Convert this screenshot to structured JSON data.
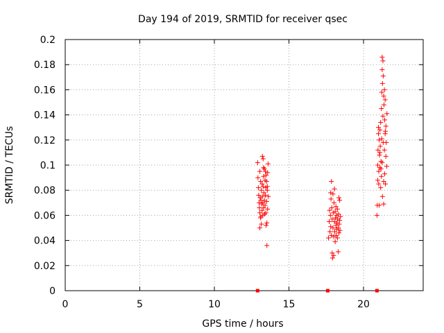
{
  "chart_data": {
    "type": "scatter",
    "title": "Day 194 of 2019, SRMTID for receiver qsec",
    "xlabel": "GPS time / hours",
    "ylabel": "SRMTID / TECUs",
    "xlim": [
      0,
      24
    ],
    "ylim": [
      0,
      0.2
    ],
    "xticks": [
      0,
      5,
      10,
      15,
      20
    ],
    "xtick_labels": [
      "0",
      "5",
      "10",
      "15",
      "20"
    ],
    "yticks": [
      0,
      0.02,
      0.04,
      0.06,
      0.08,
      0.1,
      0.12,
      0.14,
      0.16,
      0.18,
      0.2
    ],
    "ytick_labels": [
      "0",
      "0.02",
      "0.04",
      "0.06",
      "0.08",
      "0.1",
      "0.12",
      "0.14",
      "0.16",
      "0.18",
      "0.2"
    ],
    "grid": true,
    "marker_color": "#ff0000",
    "marker": "plus",
    "series": [
      {
        "name": "SRMTID",
        "points": [
          [
            12.9,
            0.102
          ],
          [
            12.92,
            0.09
          ],
          [
            12.95,
            0.082
          ],
          [
            12.97,
            0.076
          ],
          [
            13.0,
            0.07
          ],
          [
            13.02,
            0.066
          ],
          [
            13.05,
            0.062
          ],
          [
            13.05,
            0.095
          ],
          [
            13.07,
            0.074
          ],
          [
            13.1,
            0.058
          ],
          [
            13.1,
            0.087
          ],
          [
            13.12,
            0.072
          ],
          [
            13.15,
            0.053
          ],
          [
            13.15,
            0.08
          ],
          [
            13.17,
            0.069
          ],
          [
            13.2,
            0.064
          ],
          [
            13.2,
            0.085
          ],
          [
            13.22,
            0.107
          ],
          [
            13.22,
            0.075
          ],
          [
            13.25,
            0.06
          ],
          [
            13.25,
            0.07
          ],
          [
            13.27,
            0.105
          ],
          [
            13.27,
            0.083
          ],
          [
            13.3,
            0.066
          ],
          [
            13.3,
            0.091
          ],
          [
            13.32,
            0.078
          ],
          [
            13.35,
            0.072
          ],
          [
            13.35,
            0.097
          ],
          [
            13.37,
            0.061
          ],
          [
            13.4,
            0.088
          ],
          [
            13.4,
            0.068
          ],
          [
            13.42,
            0.095
          ],
          [
            13.42,
            0.076
          ],
          [
            13.45,
            0.082
          ],
          [
            13.45,
            0.062
          ],
          [
            13.47,
            0.092
          ],
          [
            13.5,
            0.071
          ],
          [
            13.5,
            0.087
          ],
          [
            13.52,
            0.036
          ],
          [
            13.52,
            0.054
          ],
          [
            13.55,
            0.08
          ],
          [
            13.57,
            0.065
          ],
          [
            13.57,
            0.094
          ],
          [
            13.6,
            0.101
          ],
          [
            13.62,
            0.075
          ],
          [
            13.05,
            0.05
          ],
          [
            13.12,
            0.059
          ],
          [
            13.3,
            0.098
          ],
          [
            13.47,
            0.052
          ],
          [
            13.55,
            0.083
          ],
          [
            17.65,
            0.042
          ],
          [
            17.7,
            0.055
          ],
          [
            17.72,
            0.064
          ],
          [
            17.75,
            0.047
          ],
          [
            17.78,
            0.06
          ],
          [
            17.8,
            0.078
          ],
          [
            17.8,
            0.051
          ],
          [
            17.82,
            0.073
          ],
          [
            17.85,
            0.087
          ],
          [
            17.85,
            0.044
          ],
          [
            17.87,
            0.066
          ],
          [
            17.9,
            0.03
          ],
          [
            17.9,
            0.057
          ],
          [
            17.92,
            0.026
          ],
          [
            17.95,
            0.077
          ],
          [
            17.95,
            0.05
          ],
          [
            17.97,
            0.062
          ],
          [
            18.0,
            0.028
          ],
          [
            18.0,
            0.043
          ],
          [
            18.02,
            0.07
          ],
          [
            18.05,
            0.055
          ],
          [
            18.05,
            0.081
          ],
          [
            18.07,
            0.047
          ],
          [
            18.1,
            0.063
          ],
          [
            18.1,
            0.039
          ],
          [
            18.12,
            0.058
          ],
          [
            18.15,
            0.052
          ],
          [
            18.15,
            0.067
          ],
          [
            18.17,
            0.044
          ],
          [
            18.2,
            0.06
          ],
          [
            18.2,
            0.049
          ],
          [
            18.22,
            0.054
          ],
          [
            18.25,
            0.042
          ],
          [
            18.25,
            0.065
          ],
          [
            18.27,
            0.057
          ],
          [
            18.3,
            0.05
          ],
          [
            18.3,
            0.031
          ],
          [
            18.32,
            0.061
          ],
          [
            18.35,
            0.046
          ],
          [
            18.35,
            0.074
          ],
          [
            18.37,
            0.053
          ],
          [
            18.4,
            0.072
          ],
          [
            18.4,
            0.056
          ],
          [
            18.42,
            0.048
          ],
          [
            18.45,
            0.059
          ],
          [
            20.9,
            0.06
          ],
          [
            20.92,
            0.068
          ],
          [
            20.95,
            0.088
          ],
          [
            20.95,
            0.1
          ],
          [
            20.97,
            0.112
          ],
          [
            21.0,
            0.125
          ],
          [
            21.0,
            0.13
          ],
          [
            21.02,
            0.095
          ],
          [
            21.02,
            0.085
          ],
          [
            21.05,
            0.12
          ],
          [
            21.05,
            0.068
          ],
          [
            21.07,
            0.108
          ],
          [
            21.1,
            0.128
          ],
          [
            21.1,
            0.098
          ],
          [
            21.12,
            0.115
          ],
          [
            21.15,
            0.134
          ],
          [
            21.15,
            0.082
          ],
          [
            21.17,
            0.103
          ],
          [
            21.2,
            0.145
          ],
          [
            21.2,
            0.091
          ],
          [
            21.22,
            0.158
          ],
          [
            21.22,
            0.121
          ],
          [
            21.25,
            0.186
          ],
          [
            21.25,
            0.102
          ],
          [
            21.27,
            0.165
          ],
          [
            21.27,
            0.075
          ],
          [
            21.3,
            0.183
          ],
          [
            21.3,
            0.139
          ],
          [
            21.32,
            0.171
          ],
          [
            21.32,
            0.118
          ],
          [
            21.35,
            0.155
          ],
          [
            21.35,
            0.087
          ],
          [
            21.37,
            0.148
          ],
          [
            21.4,
            0.16
          ],
          [
            21.4,
            0.112
          ],
          [
            21.42,
            0.136
          ],
          [
            21.42,
            0.093
          ],
          [
            21.45,
            0.152
          ],
          [
            21.45,
            0.125
          ],
          [
            21.47,
            0.085
          ],
          [
            21.5,
            0.107
          ],
          [
            21.5,
            0.131
          ],
          [
            21.52,
            0.118
          ],
          [
            21.55,
            0.099
          ],
          [
            21.57,
            0.141
          ],
          [
            21.25,
            0.176
          ],
          [
            21.35,
            0.069
          ],
          [
            21.1,
            0.11
          ],
          [
            21.47,
            0.127
          ],
          [
            21.17,
            0.097
          ]
        ]
      }
    ],
    "baseline_markers_x": [
      12.9,
      17.6,
      20.9
    ]
  }
}
